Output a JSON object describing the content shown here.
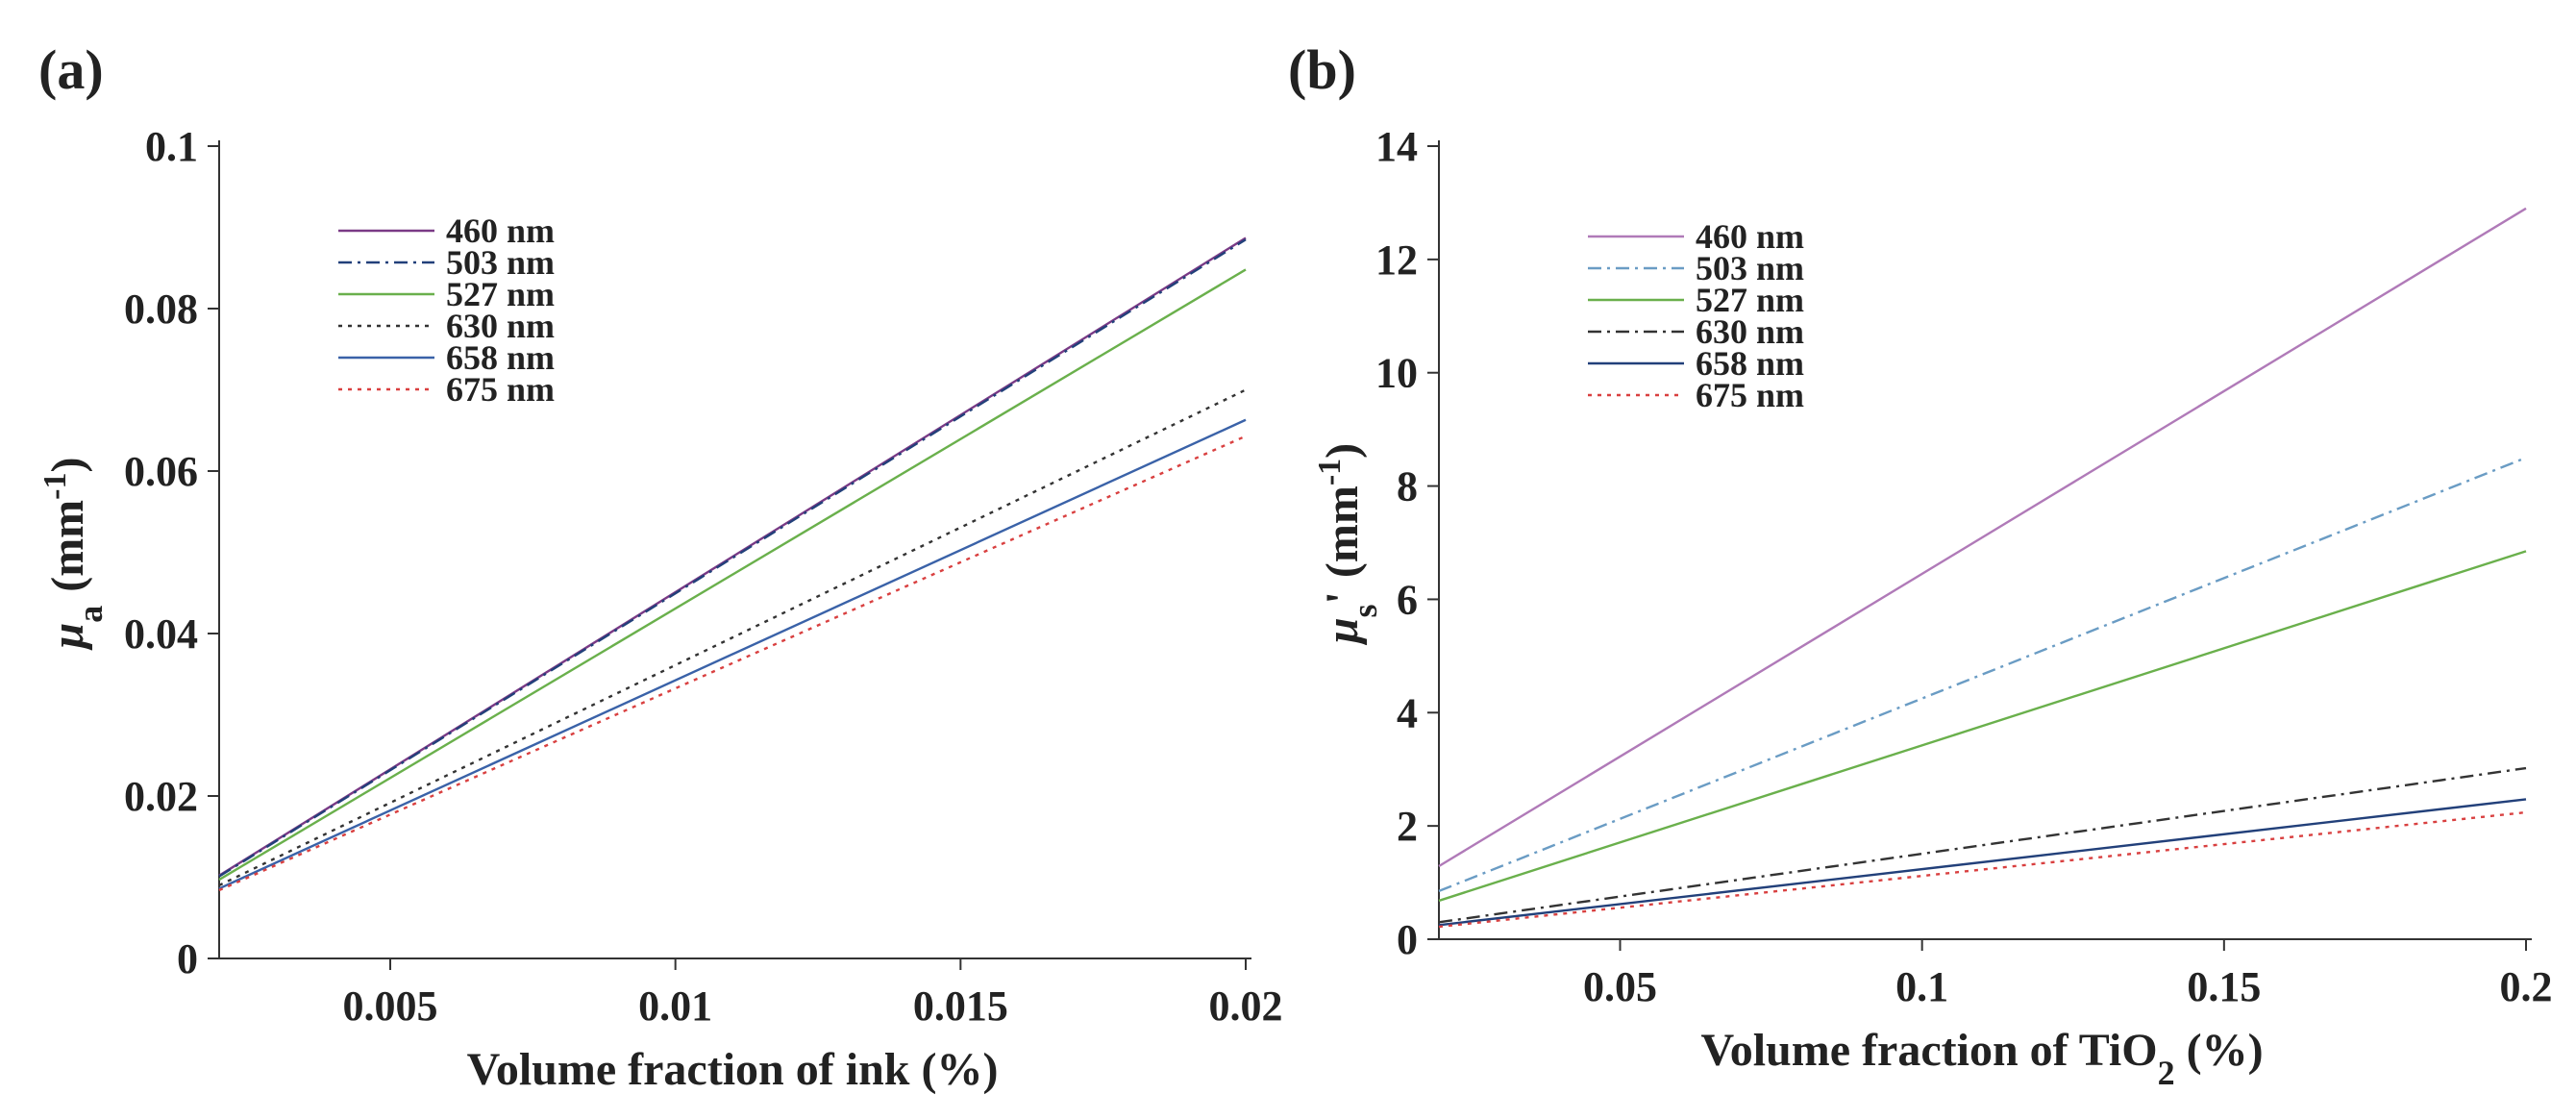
{
  "chart_data": [
    {
      "type": "line",
      "panel_label": "(a)",
      "title": "",
      "xlabel": "Volume fraction of ink (%)",
      "ylabel": {
        "symbol": "μ",
        "subscript": "a",
        "unit": "(mm",
        "superscript": "-1",
        "close": ")"
      },
      "xlim": [
        0.002,
        0.02
      ],
      "ylim": [
        0,
        0.1
      ],
      "xticks": [
        0.005,
        0.01,
        0.015,
        0.02
      ],
      "xtick_labels": [
        "0.005",
        "0.01",
        "0.015",
        "0.02"
      ],
      "yticks": [
        0,
        0.02,
        0.04,
        0.06,
        0.08,
        0.1
      ],
      "ytick_labels": [
        "0",
        "0.02",
        "0.04",
        "0.06",
        "0.08",
        "0.1"
      ],
      "grid": false,
      "legend_position": "upper-left",
      "series": [
        {
          "name": "460 nm",
          "x": [
            0.002,
            0.02
          ],
          "y": [
            0.0102,
            0.0887
          ],
          "color": "#7a3a86",
          "dash": "solid"
        },
        {
          "name": "503 nm",
          "x": [
            0.002,
            0.02
          ],
          "y": [
            0.0101,
            0.0885
          ],
          "color": "#22407a",
          "dash": "dashdot"
        },
        {
          "name": "527 nm",
          "x": [
            0.002,
            0.02
          ],
          "y": [
            0.0097,
            0.0848
          ],
          "color": "#6ab04c",
          "dash": "solid"
        },
        {
          "name": "630 nm",
          "x": [
            0.002,
            0.02
          ],
          "y": [
            0.009,
            0.07
          ],
          "color": "#333333",
          "dash": "dotted"
        },
        {
          "name": "658 nm",
          "x": [
            0.002,
            0.02
          ],
          "y": [
            0.0086,
            0.0663
          ],
          "color": "#3a62a8",
          "dash": "solid"
        },
        {
          "name": "675 nm",
          "x": [
            0.002,
            0.02
          ],
          "y": [
            0.0084,
            0.0643
          ],
          "color": "#d94040",
          "dash": "dotted"
        }
      ]
    },
    {
      "type": "line",
      "panel_label": "(b)",
      "title": "",
      "xlabel": {
        "text": "Volume fraction of TiO",
        "subscript": "2",
        "suffix": " (%)"
      },
      "ylabel": {
        "symbol": "μ",
        "subscript": "s",
        "prime": "'",
        "unit": "(mm",
        "superscript": "-1",
        "close": ")"
      },
      "xlim": [
        0.02,
        0.2
      ],
      "ylim": [
        0,
        14
      ],
      "xticks": [
        0.05,
        0.1,
        0.15,
        0.2
      ],
      "xtick_labels": [
        "0.05",
        "0.1",
        "0.15",
        "0.2"
      ],
      "yticks": [
        0,
        2,
        4,
        6,
        8,
        10,
        12,
        14
      ],
      "ytick_labels": [
        "0",
        "2",
        "4",
        "6",
        "8",
        "10",
        "12",
        "14"
      ],
      "grid": false,
      "legend_position": "upper-left",
      "series": [
        {
          "name": "460 nm",
          "x": [
            0.02,
            0.2
          ],
          "y": [
            1.29,
            12.9
          ],
          "color": "#b07ab8",
          "dash": "solid"
        },
        {
          "name": "503 nm",
          "x": [
            0.02,
            0.2
          ],
          "y": [
            0.85,
            8.5
          ],
          "color": "#6a9cc4",
          "dash": "dashdot"
        },
        {
          "name": "527 nm",
          "x": [
            0.02,
            0.2
          ],
          "y": [
            0.68,
            6.85
          ],
          "color": "#6ab04c",
          "dash": "solid"
        },
        {
          "name": "630 nm",
          "x": [
            0.02,
            0.2
          ],
          "y": [
            0.3,
            3.02
          ],
          "color": "#333333",
          "dash": "dashdot"
        },
        {
          "name": "658 nm",
          "x": [
            0.02,
            0.2
          ],
          "y": [
            0.25,
            2.47
          ],
          "color": "#22407a",
          "dash": "solid"
        },
        {
          "name": "675 nm",
          "x": [
            0.02,
            0.2
          ],
          "y": [
            0.22,
            2.24
          ],
          "color": "#d94040",
          "dash": "dotted"
        }
      ]
    }
  ]
}
